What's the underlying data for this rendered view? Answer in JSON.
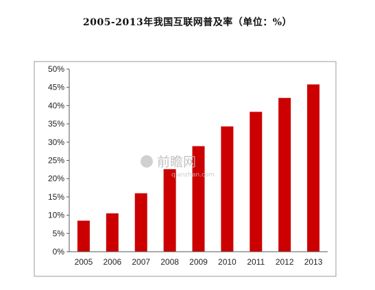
{
  "chart_data": {
    "type": "bar",
    "title": "2005-2013年我国互联网普及率（单位：%）",
    "categories": [
      "2005",
      "2006",
      "2007",
      "2008",
      "2009",
      "2010",
      "2011",
      "2012",
      "2013"
    ],
    "values": [
      8.5,
      10.5,
      16.0,
      22.6,
      28.9,
      34.3,
      38.3,
      42.1,
      45.8
    ],
    "ylim": [
      0,
      50
    ],
    "yticks": [
      0,
      5,
      10,
      15,
      20,
      25,
      30,
      35,
      40,
      45,
      50
    ],
    "ytick_labels": [
      "0%",
      "5%",
      "10%",
      "15%",
      "20%",
      "25%",
      "30%",
      "35%",
      "40%",
      "45%",
      "50%"
    ],
    "bar_color": "#cc0000",
    "grid": false,
    "legend": "none"
  },
  "watermark": {
    "text": "前瞻网",
    "url": "qianzhan.com"
  }
}
